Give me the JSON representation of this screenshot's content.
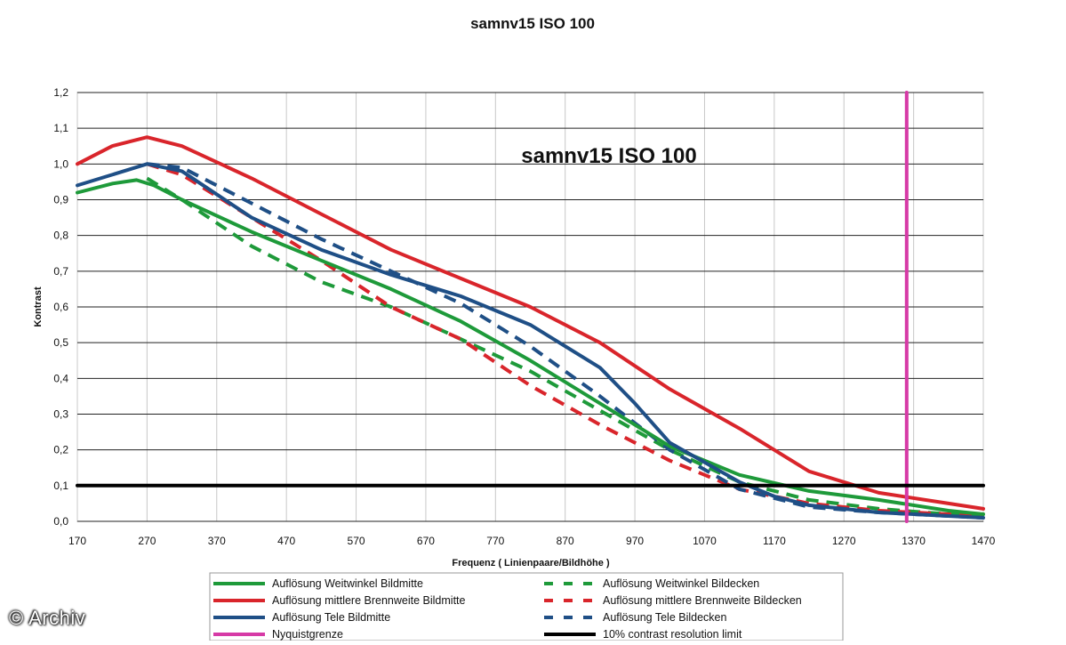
{
  "chart_data": {
    "type": "line",
    "title": "samnv15 ISO 100",
    "inner_title": "samnv15 ISO 100",
    "xlabel": "Frequenz ( Linienpaare/Bildhöhe )",
    "ylabel": "Kontrast",
    "xlim": [
      170,
      1470
    ],
    "ylim": [
      0,
      1.2
    ],
    "x_ticks": [
      170,
      270,
      370,
      470,
      570,
      670,
      770,
      870,
      970,
      1070,
      1170,
      1270,
      1370,
      1470
    ],
    "y_ticks": [
      0.0,
      0.1,
      0.2,
      0.3,
      0.4,
      0.5,
      0.6,
      0.7,
      0.8,
      0.9,
      1.0,
      1.1,
      1.2
    ],
    "y_tick_labels": [
      "0,0",
      "0,1",
      "0,2",
      "0,3",
      "0,4",
      "0,5",
      "0,6",
      "0,7",
      "0,8",
      "0,9",
      "1,0",
      "1,1",
      "1,2"
    ],
    "grid": "horizontal",
    "legend_position": "bottom",
    "series": [
      {
        "name": "Auflösung Weitwinkel Bildmitte",
        "color": "#1e9a3a",
        "dash": "solid",
        "x": [
          170,
          220,
          255,
          280,
          320,
          420,
          520,
          620,
          720,
          820,
          920,
          1020,
          1120,
          1220,
          1320,
          1420,
          1470
        ],
        "y": [
          0.92,
          0.945,
          0.955,
          0.94,
          0.9,
          0.81,
          0.73,
          0.65,
          0.56,
          0.45,
          0.33,
          0.21,
          0.13,
          0.085,
          0.06,
          0.03,
          0.02
        ]
      },
      {
        "name": "Auflösung mittlere Brennweite Bildmitte",
        "color": "#d9252b",
        "dash": "solid",
        "x": [
          170,
          220,
          270,
          320,
          420,
          520,
          620,
          720,
          820,
          920,
          1020,
          1120,
          1220,
          1320,
          1420,
          1470
        ],
        "y": [
          1.0,
          1.05,
          1.075,
          1.05,
          0.96,
          0.86,
          0.76,
          0.68,
          0.6,
          0.5,
          0.37,
          0.26,
          0.14,
          0.08,
          0.05,
          0.035
        ]
      },
      {
        "name": "Auflösung Tele Bildmitte",
        "color": "#1f4f86",
        "dash": "solid",
        "x": [
          170,
          220,
          270,
          320,
          420,
          520,
          620,
          720,
          820,
          920,
          970,
          1020,
          1120,
          1170,
          1220,
          1320,
          1420,
          1470
        ],
        "y": [
          0.94,
          0.97,
          1.0,
          0.98,
          0.85,
          0.76,
          0.69,
          0.63,
          0.55,
          0.43,
          0.33,
          0.22,
          0.11,
          0.07,
          0.045,
          0.025,
          0.015,
          0.01
        ]
      },
      {
        "name": "Nyquistgrenze",
        "color": "#d63aa6",
        "dash": "solid",
        "x": [
          1360,
          1360
        ],
        "y": [
          0,
          1.2
        ]
      },
      {
        "name": "Auflösung Weitwinkel Bildecken",
        "color": "#1e9a3a",
        "dash": "dashed",
        "x": [
          270,
          320,
          420,
          520,
          620,
          720,
          820,
          920,
          1020,
          1120,
          1220,
          1320,
          1420,
          1470
        ],
        "y": [
          0.96,
          0.9,
          0.77,
          0.67,
          0.6,
          0.51,
          0.42,
          0.31,
          0.2,
          0.11,
          0.06,
          0.035,
          0.02,
          0.015
        ]
      },
      {
        "name": "Auflösung mittlere Brennweite Bildecken",
        "color": "#d9252b",
        "dash": "dashed",
        "x": [
          270,
          320,
          420,
          520,
          620,
          720,
          820,
          920,
          1020,
          1070,
          1120,
          1220,
          1320,
          1420,
          1470
        ],
        "y": [
          1.0,
          0.97,
          0.85,
          0.73,
          0.6,
          0.51,
          0.38,
          0.27,
          0.17,
          0.13,
          0.09,
          0.05,
          0.03,
          0.02,
          0.015
        ]
      },
      {
        "name": "Auflösung Tele Bildecken",
        "color": "#1f4f86",
        "dash": "dashed",
        "x": [
          270,
          320,
          420,
          520,
          620,
          720,
          820,
          920,
          1020,
          1120,
          1220,
          1320,
          1420,
          1470
        ],
        "y": [
          1.0,
          0.99,
          0.89,
          0.79,
          0.7,
          0.61,
          0.49,
          0.35,
          0.2,
          0.09,
          0.04,
          0.025,
          0.015,
          0.01
        ]
      },
      {
        "name": "10% contrast resolution limit",
        "color": "#000000",
        "dash": "solid",
        "x": [
          170,
          1470
        ],
        "y": [
          0.1,
          0.1
        ]
      }
    ]
  },
  "watermark": "© Archiv"
}
